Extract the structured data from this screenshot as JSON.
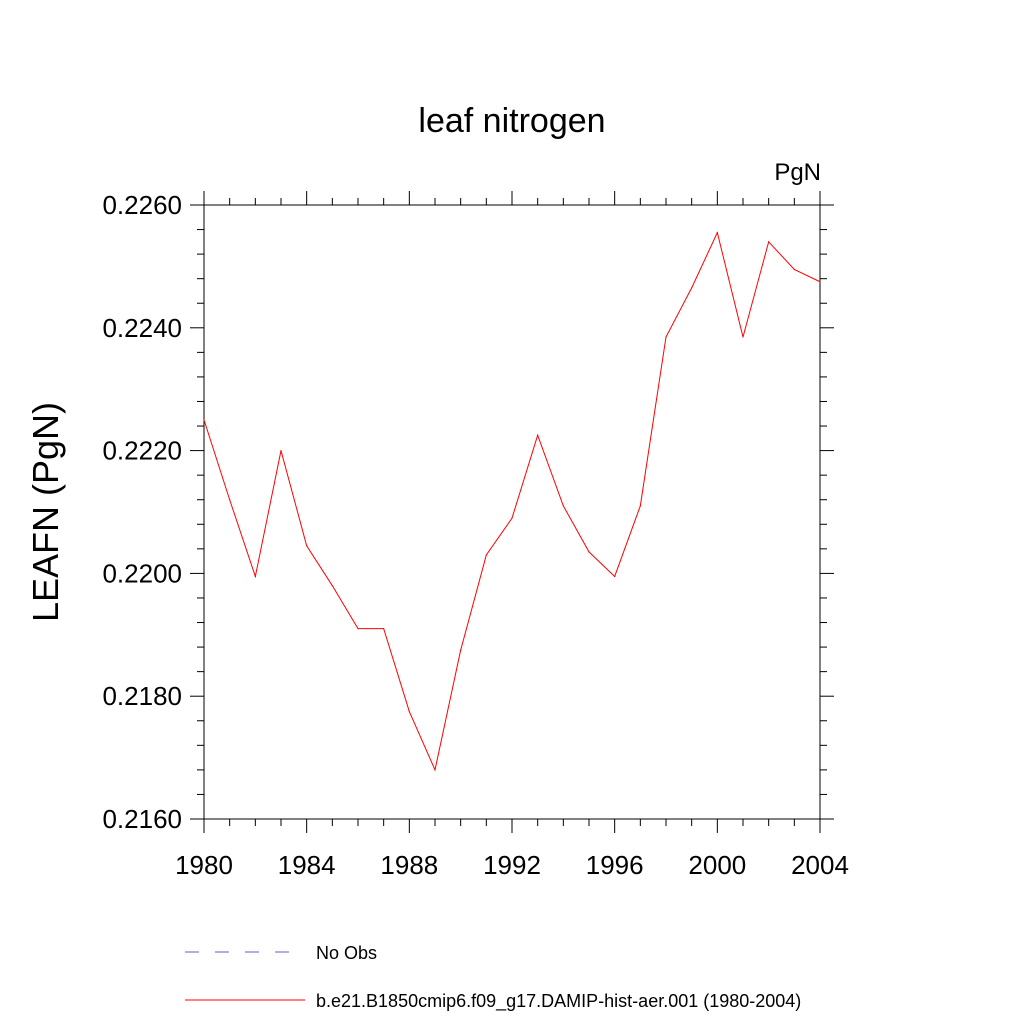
{
  "chart_data": {
    "type": "line",
    "title": "leaf nitrogen",
    "units_label": "PgN",
    "xlabel": "",
    "ylabel": "LEAFN  (PgN)",
    "xlim": [
      1980,
      2004
    ],
    "ylim": [
      0.216,
      0.226
    ],
    "x_ticks": [
      {
        "value": 1980,
        "label": "1980"
      },
      {
        "value": 1984,
        "label": "1984"
      },
      {
        "value": 1988,
        "label": "1988"
      },
      {
        "value": 1992,
        "label": "1992"
      },
      {
        "value": 1996,
        "label": "1996"
      },
      {
        "value": 2000,
        "label": "2000"
      },
      {
        "value": 2004,
        "label": "2004"
      }
    ],
    "y_ticks": [
      {
        "value": 0.216,
        "label": "0.2160"
      },
      {
        "value": 0.218,
        "label": "0.2180"
      },
      {
        "value": 0.22,
        "label": "0.2200"
      },
      {
        "value": 0.222,
        "label": "0.2220"
      },
      {
        "value": 0.224,
        "label": "0.2240"
      },
      {
        "value": 0.226,
        "label": "0.2260"
      }
    ],
    "grid": false,
    "legend_position": "bottom",
    "series": [
      {
        "name": "b.e21.B1850cmip6.f09_g17.DAMIP-hist-aer.001 (1980-2004)",
        "color": "#ff0000",
        "style": "solid",
        "x": [
          1980,
          1981,
          1982,
          1983,
          1984,
          1985,
          1986,
          1987,
          1988,
          1989,
          1990,
          1991,
          1992,
          1993,
          1994,
          1995,
          1996,
          1997,
          1998,
          1999,
          2000,
          2001,
          2002,
          2003,
          2004
        ],
        "y": [
          0.2225,
          0.2212,
          0.21995,
          0.222,
          0.22045,
          0.2198,
          0.2191,
          0.2191,
          0.21775,
          0.2168,
          0.21875,
          0.2203,
          0.2209,
          0.22225,
          0.2211,
          0.22035,
          0.21995,
          0.2211,
          0.22385,
          0.22465,
          0.22555,
          0.22385,
          0.2254,
          0.22495,
          0.22475
        ]
      }
    ],
    "legend": [
      {
        "label": "No Obs",
        "color": "#6a5acd",
        "style": "dashed"
      },
      {
        "label": "b.e21.B1850cmip6.f09_g17.DAMIP-hist-aer.001 (1980-2004)",
        "color": "#ff0000",
        "style": "solid"
      }
    ]
  }
}
